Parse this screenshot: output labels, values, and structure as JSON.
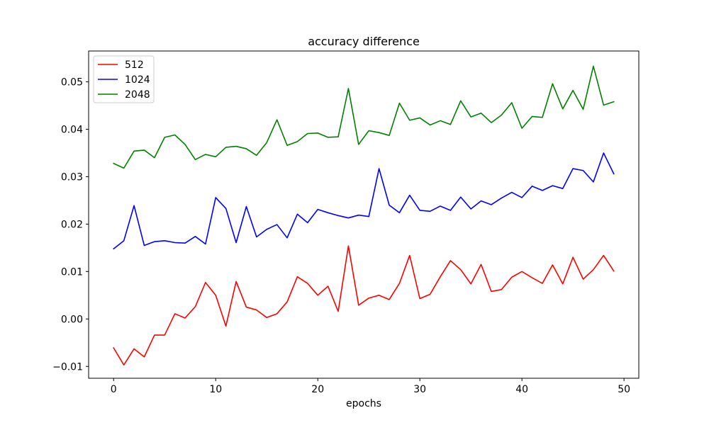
{
  "chart_data": {
    "type": "line",
    "title": "accuracy difference",
    "xlabel": "epochs",
    "ylabel": "",
    "xlim": [
      -2.45,
      51.45
    ],
    "ylim": [
      -0.0125,
      0.0565
    ],
    "xticks": [
      0,
      10,
      20,
      30,
      40,
      50
    ],
    "xtick_labels": [
      "0",
      "10",
      "20",
      "30",
      "40",
      "50"
    ],
    "yticks": [
      -0.01,
      0.0,
      0.01,
      0.02,
      0.03,
      0.04,
      0.05
    ],
    "ytick_labels": [
      "−0.01",
      "0.00",
      "0.01",
      "0.02",
      "0.03",
      "0.04",
      "0.05"
    ],
    "grid": false,
    "legend_position": "top-left",
    "x": [
      0,
      1,
      2,
      3,
      4,
      5,
      6,
      7,
      8,
      9,
      10,
      11,
      12,
      13,
      14,
      15,
      16,
      17,
      18,
      19,
      20,
      21,
      22,
      23,
      24,
      25,
      26,
      27,
      28,
      29,
      30,
      31,
      32,
      33,
      34,
      35,
      36,
      37,
      38,
      39,
      40,
      41,
      42,
      43,
      44,
      45,
      46,
      47,
      48,
      49
    ],
    "series": [
      {
        "name": "512",
        "color": "#ff0000",
        "values": [
          -0.0061,
          -0.0097,
          -0.0063,
          -0.008,
          -0.0034,
          -0.0034,
          0.0011,
          0.0002,
          0.0026,
          0.0077,
          0.005,
          -0.0015,
          0.0079,
          0.0025,
          0.0019,
          0.0003,
          0.0011,
          0.0036,
          0.0089,
          0.0075,
          0.005,
          0.0069,
          0.0016,
          0.0154,
          0.0029,
          0.0044,
          0.005,
          0.0041,
          0.0075,
          0.0134,
          0.0043,
          0.0052,
          0.0089,
          0.0123,
          0.0104,
          0.0074,
          0.0115,
          0.0058,
          0.0062,
          0.0088,
          0.01,
          0.0087,
          0.0075,
          0.0114,
          0.0074,
          0.013,
          0.0084,
          0.0104,
          0.0134,
          0.0101
        ]
      },
      {
        "name": "1024",
        "color": "#0000ff",
        "values": [
          0.0148,
          0.0165,
          0.0239,
          0.0155,
          0.0163,
          0.0165,
          0.0161,
          0.016,
          0.0174,
          0.0158,
          0.0256,
          0.0233,
          0.0161,
          0.0237,
          0.0173,
          0.0189,
          0.0199,
          0.0171,
          0.0221,
          0.0203,
          0.0231,
          0.0224,
          0.0218,
          0.0213,
          0.0219,
          0.0216,
          0.0317,
          0.024,
          0.0224,
          0.0261,
          0.0229,
          0.0227,
          0.0238,
          0.0229,
          0.0257,
          0.0232,
          0.0249,
          0.0241,
          0.0255,
          0.0267,
          0.0256,
          0.028,
          0.0271,
          0.0281,
          0.0275,
          0.0317,
          0.0313,
          0.0289,
          0.035,
          0.0306
        ]
      },
      {
        "name": "2048",
        "color": "#008000",
        "values": [
          0.0328,
          0.0318,
          0.0354,
          0.0356,
          0.034,
          0.0383,
          0.0388,
          0.0368,
          0.0336,
          0.0347,
          0.0342,
          0.0362,
          0.0364,
          0.0359,
          0.0345,
          0.0372,
          0.042,
          0.0366,
          0.0374,
          0.0391,
          0.0392,
          0.0383,
          0.0384,
          0.0486,
          0.0368,
          0.0397,
          0.0393,
          0.0387,
          0.0455,
          0.0419,
          0.0424,
          0.0409,
          0.0418,
          0.041,
          0.046,
          0.0426,
          0.0434,
          0.0414,
          0.043,
          0.0456,
          0.0402,
          0.0427,
          0.0425,
          0.0496,
          0.0443,
          0.0482,
          0.0442,
          0.0533,
          0.0451,
          0.0458
        ]
      }
    ]
  }
}
